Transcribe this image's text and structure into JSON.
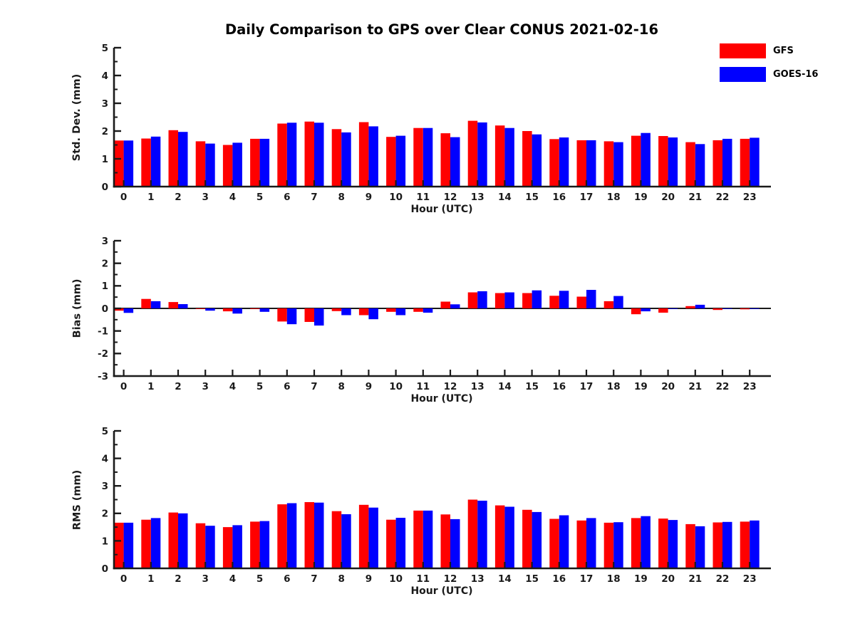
{
  "title": "Daily Comparison to GPS over Clear CONUS 2021-02-16",
  "colors": {
    "gfs": "#ff0000",
    "goes16": "#0000ff",
    "axis": "#1a1a1a",
    "background": "#ffffff"
  },
  "legend": {
    "position": "top-right",
    "items": [
      {
        "label": "GFS",
        "color": "#ff0000"
      },
      {
        "label": "GOES-16",
        "color": "#0000ff"
      }
    ]
  },
  "chart_data": [
    {
      "id": "std-dev",
      "type": "bar",
      "ylabel": "Std. Dev. (mm)",
      "xlabel": "Hour (UTC)",
      "ylim": [
        0,
        5
      ],
      "yticks": [
        0,
        1,
        2,
        3,
        4,
        5
      ],
      "grid": false,
      "categories": [
        "0",
        "1",
        "2",
        "3",
        "4",
        "5",
        "6",
        "7",
        "8",
        "9",
        "10",
        "11",
        "12",
        "13",
        "14",
        "15",
        "16",
        "17",
        "18",
        "19",
        "20",
        "21",
        "22",
        "23"
      ],
      "series": [
        {
          "name": "GFS",
          "color": "#ff0000",
          "values": [
            1.66,
            1.73,
            2.03,
            1.63,
            1.5,
            1.72,
            2.27,
            2.34,
            2.07,
            2.32,
            1.79,
            2.11,
            1.92,
            2.37,
            2.2,
            2.0,
            1.71,
            1.67,
            1.63,
            1.83,
            1.82,
            1.6,
            1.67,
            1.72
          ]
        },
        {
          "name": "GOES-16",
          "color": "#0000ff",
          "values": [
            1.66,
            1.8,
            1.97,
            1.55,
            1.58,
            1.72,
            2.3,
            2.3,
            1.95,
            2.17,
            1.83,
            2.11,
            1.78,
            2.31,
            2.11,
            1.88,
            1.77,
            1.67,
            1.6,
            1.93,
            1.77,
            1.53,
            1.72,
            1.76
          ]
        }
      ]
    },
    {
      "id": "bias",
      "type": "bar",
      "ylabel": "Bias (mm)",
      "xlabel": "Hour (UTC)",
      "ylim": [
        -3,
        3
      ],
      "yticks": [
        -3,
        -2,
        -1,
        0,
        1,
        2,
        3
      ],
      "grid": false,
      "categories": [
        "0",
        "1",
        "2",
        "3",
        "4",
        "5",
        "6",
        "7",
        "8",
        "9",
        "10",
        "11",
        "12",
        "13",
        "14",
        "15",
        "16",
        "17",
        "18",
        "19",
        "20",
        "21",
        "22",
        "23"
      ],
      "series": [
        {
          "name": "GFS",
          "color": "#ff0000",
          "values": [
            -0.1,
            0.42,
            0.28,
            -0.03,
            -0.13,
            -0.03,
            -0.58,
            -0.6,
            -0.12,
            -0.3,
            -0.15,
            -0.15,
            0.3,
            0.71,
            0.68,
            0.68,
            0.56,
            0.52,
            0.32,
            -0.26,
            -0.19,
            0.1,
            -0.07,
            -0.04
          ]
        },
        {
          "name": "GOES-16",
          "color": "#0000ff",
          "values": [
            -0.2,
            0.32,
            0.19,
            -0.1,
            -0.23,
            -0.15,
            -0.7,
            -0.76,
            -0.3,
            -0.48,
            -0.3,
            -0.19,
            0.18,
            0.76,
            0.71,
            0.8,
            0.78,
            0.82,
            0.55,
            -0.13,
            -0.02,
            0.16,
            -0.02,
            -0.02
          ]
        }
      ]
    },
    {
      "id": "rms",
      "type": "bar",
      "ylabel": "RMS (mm)",
      "xlabel": "Hour (UTC)",
      "ylim": [
        0,
        5
      ],
      "yticks": [
        0,
        1,
        2,
        3,
        4,
        5
      ],
      "grid": false,
      "categories": [
        "0",
        "1",
        "2",
        "3",
        "4",
        "5",
        "6",
        "7",
        "8",
        "9",
        "10",
        "11",
        "12",
        "13",
        "14",
        "15",
        "16",
        "17",
        "18",
        "19",
        "20",
        "21",
        "22",
        "23"
      ],
      "series": [
        {
          "name": "GFS",
          "color": "#ff0000",
          "values": [
            1.66,
            1.77,
            2.03,
            1.64,
            1.5,
            1.7,
            2.33,
            2.41,
            2.08,
            2.31,
            1.77,
            2.1,
            1.96,
            2.5,
            2.29,
            2.13,
            1.8,
            1.74,
            1.66,
            1.83,
            1.81,
            1.61,
            1.67,
            1.7
          ]
        },
        {
          "name": "GOES-16",
          "color": "#0000ff",
          "values": [
            1.66,
            1.83,
            2.0,
            1.55,
            1.57,
            1.72,
            2.37,
            2.39,
            1.97,
            2.21,
            1.84,
            2.1,
            1.79,
            2.46,
            2.24,
            2.05,
            1.93,
            1.83,
            1.68,
            1.9,
            1.76,
            1.53,
            1.69,
            1.74
          ]
        }
      ]
    }
  ]
}
